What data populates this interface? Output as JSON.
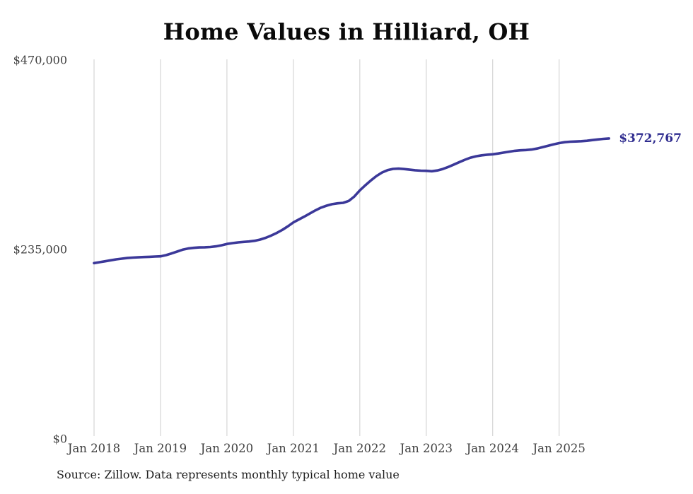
{
  "title": "Home Values in Hilliard, OH",
  "footer": {
    "source": "Source: Zillow. Data represents monthly typical home value"
  },
  "chart_data": {
    "type": "line",
    "title": "Home Values in Hilliard, OH",
    "series_name": "Monthly typical home value",
    "frequency": "monthly",
    "start_month": "Jan 2018",
    "x_tick_labels": [
      "Jan 2018",
      "Jan 2019",
      "Jan 2020",
      "Jan 2021",
      "Jan 2022",
      "Jan 2023",
      "Jan 2024",
      "Jan 2025"
    ],
    "y_ticks": [
      {
        "value": 0,
        "label": "$0"
      },
      {
        "value": 235000,
        "label": "$235,000"
      },
      {
        "value": 470000,
        "label": "$470,000"
      }
    ],
    "ylim": [
      0,
      470000
    ],
    "grid": "vertical-only",
    "grid_color": "#cccccc",
    "line_color": "#3b3899",
    "end_label_color": "#2f2c8f",
    "axis_label_color": "#3f3f3f",
    "end_label": "$372,767",
    "end_value": 372767,
    "values": [
      218100,
      219200,
      220400,
      221600,
      222700,
      223600,
      224400,
      224900,
      225300,
      225600,
      225900,
      226200,
      226500,
      228000,
      230100,
      232400,
      234700,
      236200,
      237000,
      237500,
      237700,
      238100,
      238900,
      240200,
      241800,
      242900,
      243800,
      244400,
      244900,
      245800,
      247300,
      249500,
      252300,
      255500,
      259300,
      263700,
      268600,
      272300,
      275900,
      279800,
      283600,
      286900,
      289400,
      291200,
      292300,
      292900,
      295200,
      300700,
      308300,
      314700,
      320700,
      326100,
      330500,
      333400,
      335000,
      335300,
      334800,
      334000,
      333300,
      332800,
      332600,
      332100,
      333000,
      334900,
      337400,
      340400,
      343500,
      346400,
      348900,
      350700,
      351800,
      352600,
      353100,
      354100,
      355200,
      356400,
      357400,
      358000,
      358400,
      359000,
      360200,
      361900,
      363700,
      365500,
      367000,
      368100,
      368700,
      369000,
      369300,
      369900,
      370700,
      371500,
      372200,
      372767
    ]
  }
}
